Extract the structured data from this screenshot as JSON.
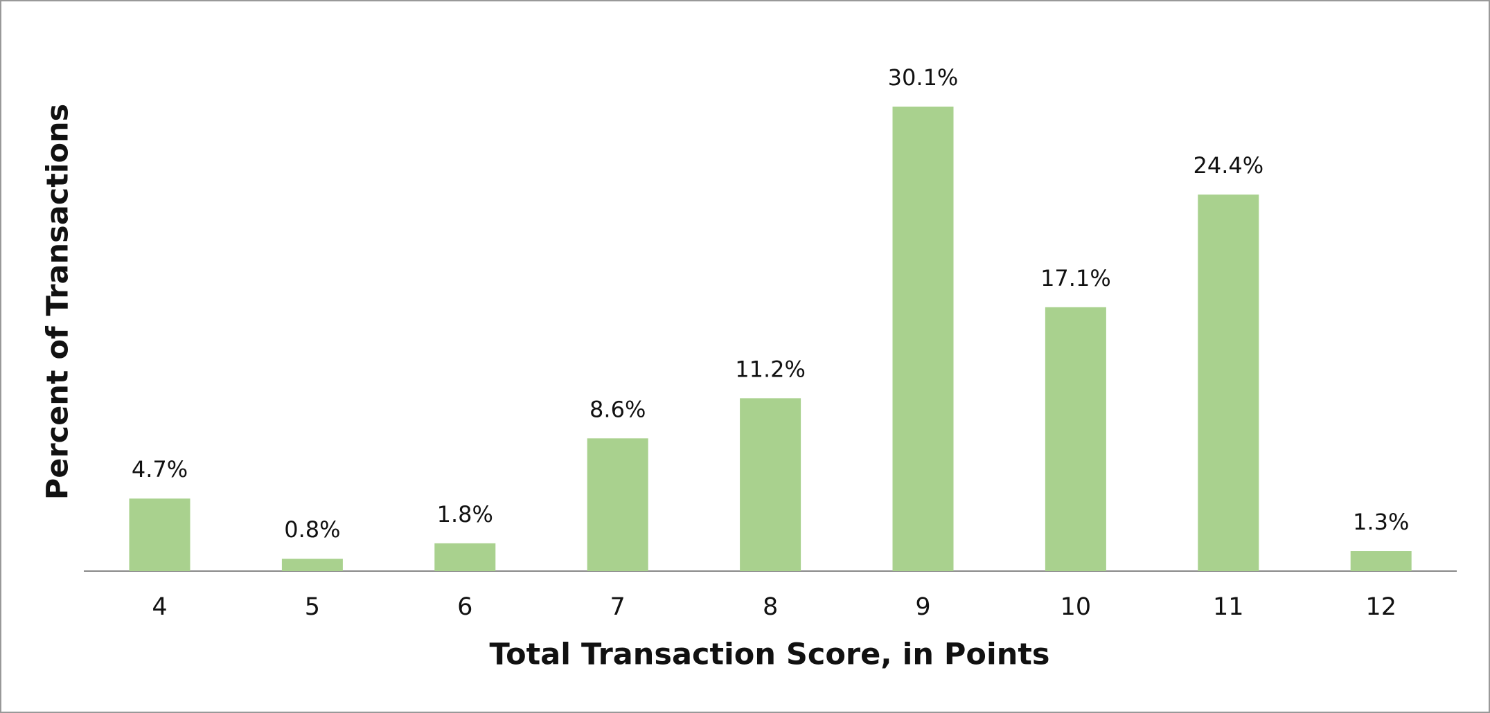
{
  "chart_data": {
    "type": "bar",
    "x_label": "Total Transaction Score, in Points",
    "y_label": "Percent of Transactions",
    "categories": [
      "4",
      "5",
      "6",
      "7",
      "8",
      "9",
      "10",
      "11",
      "12"
    ],
    "values": [
      4.7,
      0.8,
      1.8,
      8.6,
      11.2,
      30.1,
      17.1,
      24.4,
      1.3
    ],
    "value_labels": [
      "4.7%",
      "0.8%",
      "1.8%",
      "8.6%",
      "11.2%",
      "30.1%",
      "17.1%",
      "24.4%",
      "1.3%"
    ],
    "color": "#a9d18e"
  }
}
